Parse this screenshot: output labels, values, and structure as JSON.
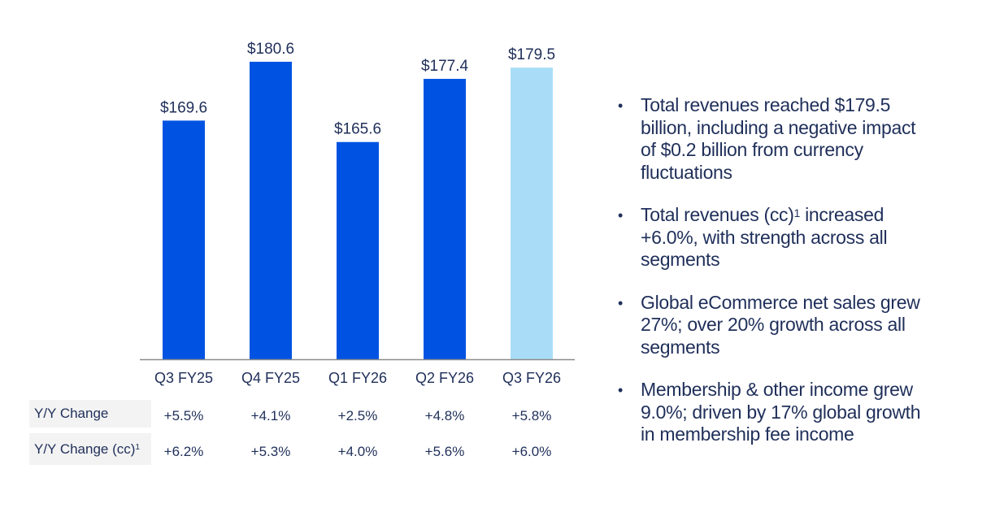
{
  "chart_data": {
    "type": "bar",
    "categories": [
      "Q3 FY25",
      "Q4 FY25",
      "Q1 FY26",
      "Q2 FY26",
      "Q3 FY26"
    ],
    "values": [
      169.6,
      180.6,
      165.6,
      177.4,
      179.5
    ],
    "data_labels": [
      "$169.6",
      "$180.6",
      "$165.6",
      "$177.4",
      "$179.5"
    ],
    "title": "",
    "xlabel": "",
    "ylabel": "",
    "ylim": [
      125,
      185
    ],
    "grid": false,
    "colors": [
      "#0053e2",
      "#0053e2",
      "#0053e2",
      "#0053e2",
      "#a9ddf7"
    ],
    "axis_color": "#8a8a8a"
  },
  "table": {
    "rows": [
      {
        "label": "Y/Y Change",
        "sup": "",
        "values": [
          "+5.5%",
          "+4.1%",
          "+2.5%",
          "+4.8%",
          "+5.8%"
        ]
      },
      {
        "label": "Y/Y Change (cc)",
        "sup": "1",
        "values": [
          "+6.2%",
          "+5.3%",
          "+4.0%",
          "+5.6%",
          "+6.0%"
        ]
      }
    ]
  },
  "bullets": [
    {
      "lines": [
        "Total revenues reached $179.5",
        "billion, including a negative impact",
        "of $0.2 billion from currency",
        "fluctuations"
      ]
    },
    {
      "first_pre": "Total revenues (cc)",
      "first_sup": "1",
      "first_post": " increased",
      "lines": [
        "+6.0%, with strength across all",
        "segments"
      ]
    },
    {
      "lines": [
        "Global eCommerce net sales grew",
        "27%; over 20% growth across all",
        "segments"
      ]
    },
    {
      "lines": [
        "Membership & other income grew",
        "9.0%; driven by 17% global growth",
        "in membership fee income"
      ]
    }
  ],
  "bullet_symbol": "•"
}
